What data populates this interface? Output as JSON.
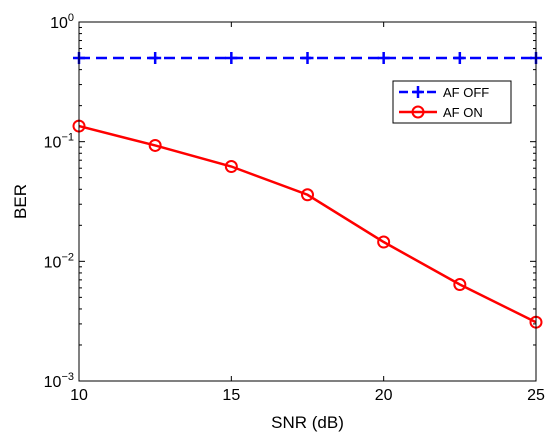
{
  "chart_data": {
    "type": "line",
    "xlabel": "SNR (dB)",
    "ylabel": "BER",
    "xlim": [
      10,
      25
    ],
    "ylim": [
      0.001,
      1
    ],
    "yscale": "log",
    "x_ticks": [
      10,
      15,
      20,
      25
    ],
    "y_ticks": [
      {
        "value": 0.001,
        "base": "10",
        "exp": "−3"
      },
      {
        "value": 0.01,
        "base": "10",
        "exp": "−2"
      },
      {
        "value": 0.1,
        "base": "10",
        "exp": "−1"
      },
      {
        "value": 1,
        "base": "10",
        "exp": "0"
      }
    ],
    "grid": false,
    "legend_position": "top-right",
    "series": [
      {
        "name": "AF OFF",
        "color": "#0000ff",
        "line_style": "dashed",
        "marker": "plus",
        "x": [
          10,
          12.5,
          15,
          17.5,
          20,
          22.5,
          25
        ],
        "y": [
          0.5,
          0.5,
          0.5,
          0.5,
          0.5,
          0.5,
          0.5
        ]
      },
      {
        "name": "AF ON",
        "color": "#ff0000",
        "line_style": "solid",
        "marker": "circle",
        "x": [
          10,
          12.5,
          15,
          17.5,
          20,
          22.5,
          25
        ],
        "y": [
          0.135,
          0.093,
          0.062,
          0.036,
          0.0145,
          0.0064,
          0.0031
        ]
      }
    ]
  }
}
